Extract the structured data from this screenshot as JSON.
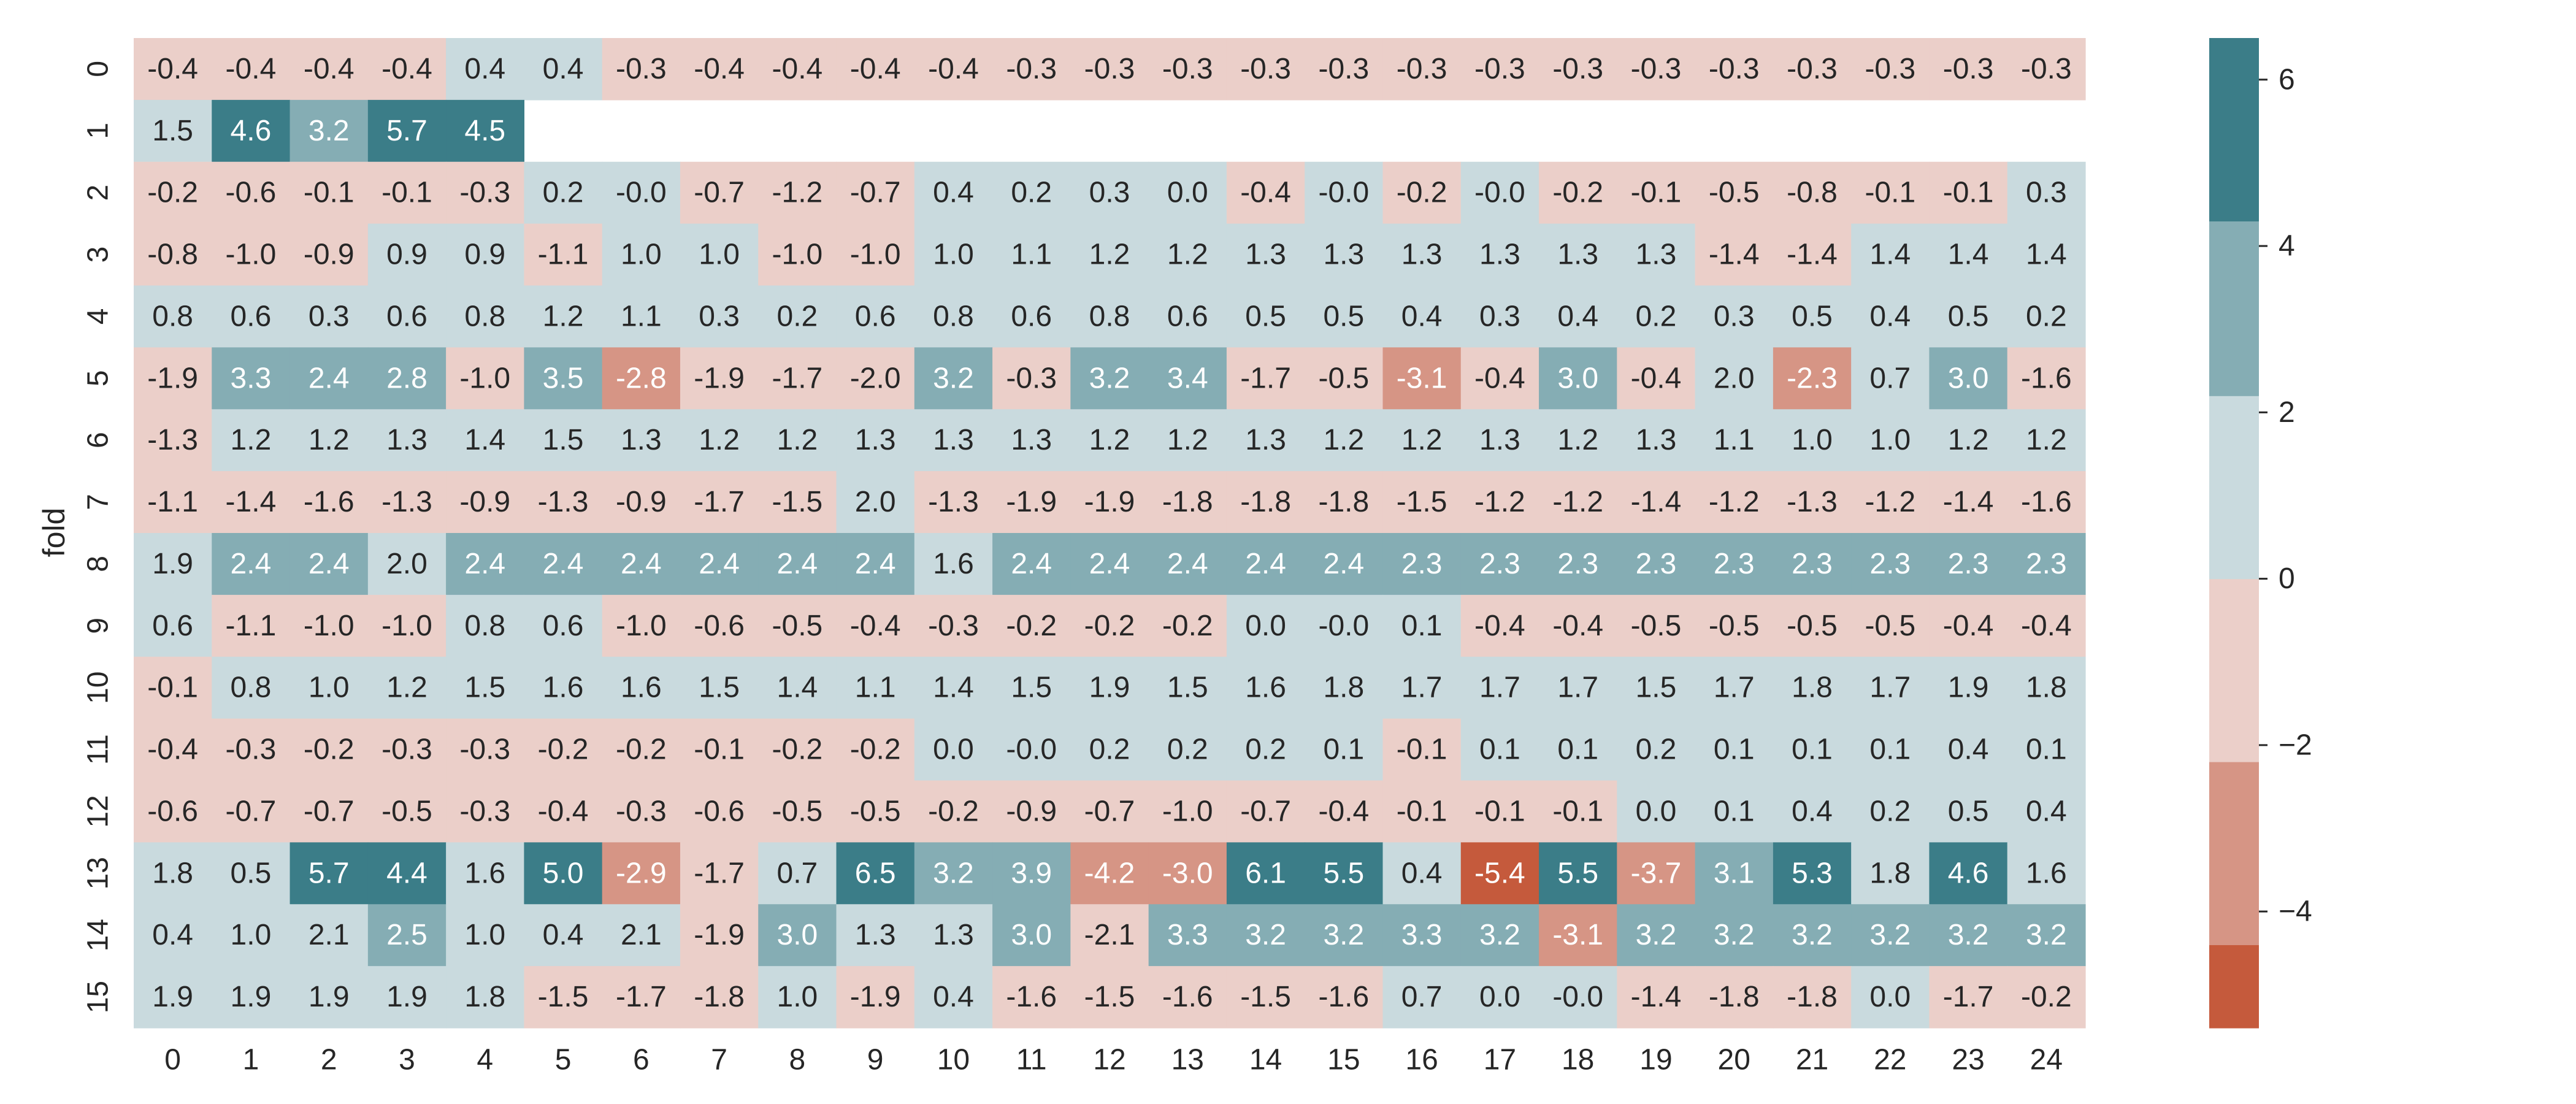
{
  "chart_data": {
    "type": "heatmap",
    "title": "",
    "xlabel": "",
    "ylabel": "fold",
    "x_categories": [
      "0",
      "1",
      "2",
      "3",
      "4",
      "5",
      "6",
      "7",
      "8",
      "9",
      "10",
      "11",
      "12",
      "13",
      "14",
      "15",
      "16",
      "17",
      "18",
      "19",
      "20",
      "21",
      "22",
      "23",
      "24"
    ],
    "y_categories": [
      "0",
      "1",
      "2",
      "3",
      "4",
      "5",
      "6",
      "7",
      "8",
      "9",
      "10",
      "11",
      "12",
      "13",
      "14",
      "15"
    ],
    "values": [
      [
        -0.4,
        -0.4,
        -0.4,
        -0.4,
        0.4,
        0.4,
        -0.3,
        -0.4,
        -0.4,
        -0.4,
        -0.4,
        -0.3,
        -0.3,
        -0.3,
        -0.3,
        -0.3,
        -0.3,
        -0.3,
        -0.3,
        -0.3,
        -0.3,
        -0.3,
        -0.3,
        -0.3,
        -0.3
      ],
      [
        1.5,
        4.6,
        3.2,
        5.7,
        4.5,
        null,
        null,
        null,
        null,
        null,
        null,
        null,
        null,
        null,
        null,
        null,
        null,
        null,
        null,
        null,
        null,
        null,
        null,
        null,
        null
      ],
      [
        -0.2,
        -0.6,
        -0.1,
        -0.1,
        -0.3,
        0.2,
        -0.0,
        -0.7,
        -1.2,
        -0.7,
        0.4,
        0.2,
        0.3,
        0.0,
        -0.4,
        -0.0,
        -0.2,
        -0.0,
        -0.2,
        -0.1,
        -0.5,
        -0.8,
        -0.1,
        -0.1,
        0.3
      ],
      [
        -0.8,
        -1.0,
        -0.9,
        0.9,
        0.9,
        -1.1,
        1.0,
        1.0,
        -1.0,
        -1.0,
        1.0,
        1.1,
        1.2,
        1.2,
        1.3,
        1.3,
        1.3,
        1.3,
        1.3,
        1.3,
        -1.4,
        -1.4,
        1.4,
        1.4,
        1.4
      ],
      [
        0.8,
        0.6,
        0.3,
        0.6,
        0.8,
        1.2,
        1.1,
        0.3,
        0.2,
        0.6,
        0.8,
        0.6,
        0.8,
        0.6,
        0.5,
        0.5,
        0.4,
        0.3,
        0.4,
        0.2,
        0.3,
        0.5,
        0.4,
        0.5,
        0.2
      ],
      [
        -1.9,
        3.3,
        2.4,
        2.8,
        -1.0,
        3.5,
        -2.8,
        -1.9,
        -1.7,
        -2.0,
        3.2,
        -0.3,
        3.2,
        3.4,
        -1.7,
        -0.5,
        -3.1,
        -0.4,
        3.0,
        -0.4,
        2.0,
        -2.3,
        0.7,
        3.0,
        -1.6
      ],
      [
        -1.3,
        1.2,
        1.2,
        1.3,
        1.4,
        1.5,
        1.3,
        1.2,
        1.2,
        1.3,
        1.3,
        1.3,
        1.2,
        1.2,
        1.3,
        1.2,
        1.2,
        1.3,
        1.2,
        1.3,
        1.1,
        1.0,
        1.0,
        1.2,
        1.2
      ],
      [
        -1.1,
        -1.4,
        -1.6,
        -1.3,
        -0.9,
        -1.3,
        -0.9,
        -1.7,
        -1.5,
        2.0,
        -1.3,
        -1.9,
        -1.9,
        -1.8,
        -1.8,
        -1.8,
        -1.5,
        -1.2,
        -1.2,
        -1.4,
        -1.2,
        -1.3,
        -1.2,
        -1.4,
        -1.6
      ],
      [
        1.9,
        2.4,
        2.4,
        2.0,
        2.4,
        2.4,
        2.4,
        2.4,
        2.4,
        2.4,
        1.6,
        2.4,
        2.4,
        2.4,
        2.4,
        2.4,
        2.3,
        2.3,
        2.3,
        2.3,
        2.3,
        2.3,
        2.3,
        2.3,
        2.3
      ],
      [
        0.6,
        -1.1,
        -1.0,
        -1.0,
        0.8,
        0.6,
        -1.0,
        -0.6,
        -0.5,
        -0.4,
        -0.3,
        -0.2,
        -0.2,
        -0.2,
        0.0,
        -0.0,
        0.1,
        -0.4,
        -0.4,
        -0.5,
        -0.5,
        -0.5,
        -0.5,
        -0.4,
        -0.4
      ],
      [
        -0.1,
        0.8,
        1.0,
        1.2,
        1.5,
        1.6,
        1.6,
        1.5,
        1.4,
        1.1,
        1.4,
        1.5,
        1.9,
        1.5,
        1.6,
        1.8,
        1.7,
        1.7,
        1.7,
        1.5,
        1.7,
        1.8,
        1.7,
        1.9,
        1.8
      ],
      [
        -0.4,
        -0.3,
        -0.2,
        -0.3,
        -0.3,
        -0.2,
        -0.2,
        -0.1,
        -0.2,
        -0.2,
        0.0,
        -0.0,
        0.2,
        0.2,
        0.2,
        0.1,
        -0.1,
        0.1,
        0.1,
        0.2,
        0.1,
        0.1,
        0.1,
        0.4,
        0.1
      ],
      [
        -0.6,
        -0.7,
        -0.7,
        -0.5,
        -0.3,
        -0.4,
        -0.3,
        -0.6,
        -0.5,
        -0.5,
        -0.2,
        -0.9,
        -0.7,
        -1.0,
        -0.7,
        -0.4,
        -0.1,
        -0.1,
        -0.1,
        0.0,
        0.1,
        0.4,
        0.2,
        0.5,
        0.4
      ],
      [
        1.8,
        0.5,
        5.7,
        4.4,
        1.6,
        5.0,
        -2.9,
        -1.7,
        0.7,
        6.5,
        3.2,
        3.9,
        -4.2,
        -3.0,
        6.1,
        5.5,
        0.4,
        -5.4,
        5.5,
        -3.7,
        3.1,
        5.3,
        1.8,
        4.6,
        1.6
      ],
      [
        0.4,
        1.0,
        2.1,
        2.5,
        1.0,
        0.4,
        2.1,
        -1.9,
        3.0,
        1.3,
        1.3,
        3.0,
        -2.1,
        3.3,
        3.2,
        3.2,
        3.3,
        3.2,
        -3.1,
        3.2,
        3.2,
        3.2,
        3.2,
        3.2,
        3.2
      ],
      [
        1.9,
        1.9,
        1.9,
        1.9,
        1.8,
        -1.5,
        -1.7,
        -1.8,
        1.0,
        -1.9,
        0.4,
        -1.6,
        -1.5,
        -1.6,
        -1.5,
        -1.6,
        0.7,
        0.0,
        -0.0,
        -1.4,
        -1.8,
        -1.8,
        0.0,
        -1.7,
        -0.2
      ]
    ],
    "color_bins": [
      {
        "min": -5.4,
        "max": -4.4,
        "color": "#c55a3c"
      },
      {
        "min": -4.4,
        "max": -2.2,
        "color": "#d69585"
      },
      {
        "min": -2.2,
        "max": 0.0,
        "color": "#ebcfc9"
      },
      {
        "min": 0.0,
        "max": 2.2,
        "color": "#c9dade"
      },
      {
        "min": 2.2,
        "max": 4.3,
        "color": "#85adb4"
      },
      {
        "min": 4.3,
        "max": 6.5,
        "color": "#3b7d88"
      }
    ],
    "colorbar": {
      "range": [
        -5.4,
        6.5
      ],
      "ticks": [
        {
          "value": 6,
          "label": "6"
        },
        {
          "value": 4,
          "label": "4"
        },
        {
          "value": 2,
          "label": "2"
        },
        {
          "value": 0,
          "label": "0"
        },
        {
          "value": -2,
          "label": "−2"
        },
        {
          "value": -4,
          "label": "−4"
        }
      ]
    },
    "annotation_text_colors": {
      "dark": "#262626",
      "light": "#ffffff"
    },
    "grid": false
  }
}
